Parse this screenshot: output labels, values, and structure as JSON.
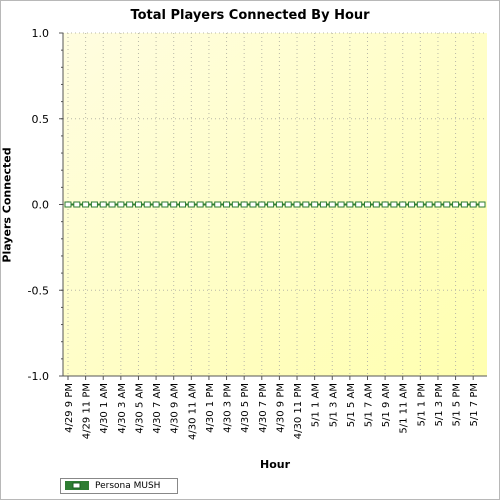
{
  "chart_data": {
    "type": "line",
    "title": "Total Players Connected By Hour",
    "xlabel": "Hour",
    "ylabel": "Players Connected",
    "ylim": [
      -1.0,
      1.0
    ],
    "y_ticks": [
      "1.0",
      "0.5",
      "0.0",
      "-0.5",
      "-1.0"
    ],
    "y_tick_values": [
      1.0,
      0.5,
      0.0,
      -0.5,
      -1.0
    ],
    "x_ticks": [
      "4/29 9 PM",
      "4/29 11 PM",
      "4/30 1 AM",
      "4/30 3 AM",
      "4/30 5 AM",
      "4/30 7 AM",
      "4/30 9 AM",
      "4/30 11 AM",
      "4/30 1 PM",
      "4/30 3 PM",
      "4/30 5 PM",
      "4/30 7 PM",
      "4/30 9 PM",
      "4/30 11 PM",
      "5/1 1 AM",
      "5/1 3 AM",
      "5/1 5 AM",
      "5/1 7 AM",
      "5/1 9 AM",
      "5/1 11 AM",
      "5/1 1 PM",
      "5/1 3 PM",
      "5/1 5 PM",
      "5/1 7 PM"
    ],
    "point_count": 48,
    "grid": true,
    "legend_position": "bottom-left",
    "series": [
      {
        "name": "Persona MUSH",
        "value": 0,
        "color": "#2e7d32"
      }
    ]
  },
  "colors": {
    "plot_top": "#fffde0",
    "plot_bottom": "#ffffb0",
    "grid": "#b8b8a8",
    "axis": "#555555"
  }
}
